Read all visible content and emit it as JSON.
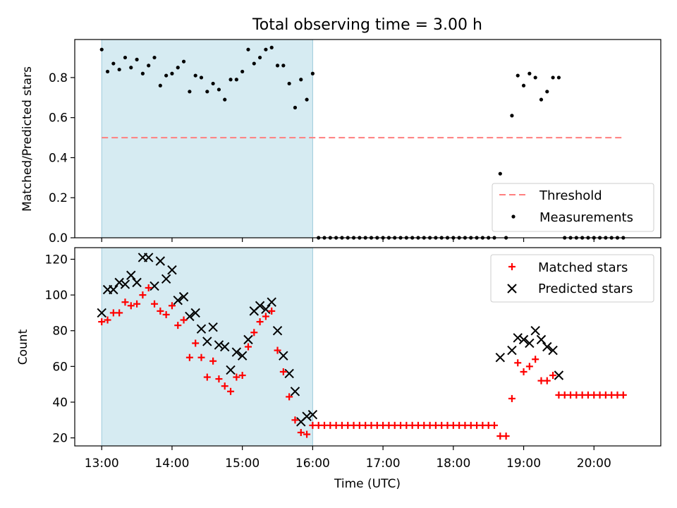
{
  "title": "Total observing time = 3.00 h",
  "chart_data": [
    {
      "type": "scatter",
      "ylabel": "Matched/Predicted stars",
      "xlim": [
        "12:37",
        "20:57"
      ],
      "ylim": [
        0,
        0.99
      ],
      "yticks": [
        0.0,
        0.2,
        0.4,
        0.6,
        0.8
      ],
      "ytick_labels": [
        "0.0",
        "0.2",
        "0.4",
        "0.6",
        "0.8"
      ],
      "shaded_range": [
        "13:00",
        "16:00"
      ],
      "legend": {
        "position": "lower-right",
        "entries": [
          "Threshold",
          "Measurements"
        ]
      },
      "threshold": {
        "name": "Threshold",
        "y": 0.5,
        "x": [
          "13:00",
          "20:25"
        ],
        "color": "#ff7f7f"
      },
      "series": [
        {
          "name": "Measurements",
          "color": "#000000",
          "points": [
            [
              "13:00",
              0.94
            ],
            [
              "13:05",
              0.83
            ],
            [
              "13:10",
              0.87
            ],
            [
              "13:15",
              0.84
            ],
            [
              "13:20",
              0.9
            ],
            [
              "13:25",
              0.85
            ],
            [
              "13:30",
              0.89
            ],
            [
              "13:35",
              0.82
            ],
            [
              "13:40",
              0.86
            ],
            [
              "13:45",
              0.9
            ],
            [
              "13:50",
              0.76
            ],
            [
              "13:55",
              0.81
            ],
            [
              "14:00",
              0.82
            ],
            [
              "14:05",
              0.85
            ],
            [
              "14:10",
              0.88
            ],
            [
              "14:15",
              0.73
            ],
            [
              "14:20",
              0.81
            ],
            [
              "14:25",
              0.8
            ],
            [
              "14:30",
              0.73
            ],
            [
              "14:35",
              0.77
            ],
            [
              "14:40",
              0.74
            ],
            [
              "14:45",
              0.69
            ],
            [
              "14:50",
              0.79
            ],
            [
              "14:55",
              0.79
            ],
            [
              "15:00",
              0.83
            ],
            [
              "15:05",
              0.94
            ],
            [
              "15:10",
              0.87
            ],
            [
              "15:15",
              0.9
            ],
            [
              "15:20",
              0.94
            ],
            [
              "15:25",
              0.95
            ],
            [
              "15:30",
              0.86
            ],
            [
              "15:35",
              0.86
            ],
            [
              "15:40",
              0.77
            ],
            [
              "15:45",
              0.65
            ],
            [
              "15:50",
              0.79
            ],
            [
              "15:55",
              0.69
            ],
            [
              "16:00",
              0.82
            ],
            [
              "16:05",
              0
            ],
            [
              "16:10",
              0
            ],
            [
              "16:15",
              0
            ],
            [
              "16:20",
              0
            ],
            [
              "16:25",
              0
            ],
            [
              "16:30",
              0
            ],
            [
              "16:35",
              0
            ],
            [
              "16:40",
              0
            ],
            [
              "16:45",
              0
            ],
            [
              "16:50",
              0
            ],
            [
              "16:55",
              0
            ],
            [
              "17:00",
              0
            ],
            [
              "17:05",
              0
            ],
            [
              "17:10",
              0
            ],
            [
              "17:15",
              0
            ],
            [
              "17:20",
              0
            ],
            [
              "17:25",
              0
            ],
            [
              "17:30",
              0
            ],
            [
              "17:35",
              0
            ],
            [
              "17:40",
              0
            ],
            [
              "17:45",
              0
            ],
            [
              "17:50",
              0
            ],
            [
              "17:55",
              0
            ],
            [
              "18:00",
              0
            ],
            [
              "18:05",
              0
            ],
            [
              "18:10",
              0
            ],
            [
              "18:15",
              0
            ],
            [
              "18:20",
              0
            ],
            [
              "18:25",
              0
            ],
            [
              "18:30",
              0
            ],
            [
              "18:35",
              0
            ],
            [
              "18:40",
              0.32
            ],
            [
              "18:45",
              0
            ],
            [
              "18:50",
              0.61
            ],
            [
              "18:55",
              0.81
            ],
            [
              "19:00",
              0.76
            ],
            [
              "19:05",
              0.82
            ],
            [
              "19:10",
              0.8
            ],
            [
              "19:15",
              0.69
            ],
            [
              "19:20",
              0.73
            ],
            [
              "19:25",
              0.8
            ],
            [
              "19:30",
              0.8
            ],
            [
              "19:35",
              0
            ],
            [
              "19:40",
              0
            ],
            [
              "19:45",
              0
            ],
            [
              "19:50",
              0
            ],
            [
              "19:55",
              0
            ],
            [
              "20:00",
              0
            ],
            [
              "20:05",
              0
            ],
            [
              "20:10",
              0
            ],
            [
              "20:15",
              0
            ],
            [
              "20:20",
              0
            ],
            [
              "20:25",
              0
            ]
          ]
        }
      ]
    },
    {
      "type": "scatter",
      "xlabel": "Time (UTC)",
      "ylabel": "Count",
      "xlim": [
        "12:37",
        "20:57"
      ],
      "ylim": [
        15.5,
        126.5
      ],
      "yticks": [
        20,
        40,
        60,
        80,
        100,
        120
      ],
      "ytick_labels": [
        "20",
        "40",
        "60",
        "80",
        "100",
        "120"
      ],
      "xticks": [
        "13:00",
        "14:00",
        "15:00",
        "16:00",
        "17:00",
        "18:00",
        "19:00",
        "20:00"
      ],
      "xtick_labels": [
        "13:00",
        "14:00",
        "15:00",
        "16:00",
        "17:00",
        "18:00",
        "19:00",
        "20:00"
      ],
      "shaded_range": [
        "13:00",
        "16:00"
      ],
      "legend": {
        "position": "top-right",
        "entries": [
          "Matched stars",
          "Predicted stars"
        ]
      },
      "series": [
        {
          "name": "Matched stars",
          "marker": "plus",
          "color": "#ff0000",
          "points": [
            [
              "13:00",
              85
            ],
            [
              "13:05",
              86
            ],
            [
              "13:10",
              90
            ],
            [
              "13:15",
              90
            ],
            [
              "13:20",
              96
            ],
            [
              "13:25",
              94
            ],
            [
              "13:30",
              95
            ],
            [
              "13:35",
              100
            ],
            [
              "13:40",
              104
            ],
            [
              "13:45",
              95
            ],
            [
              "13:50",
              91
            ],
            [
              "13:55",
              89
            ],
            [
              "14:00",
              94
            ],
            [
              "14:05",
              83
            ],
            [
              "14:10",
              86
            ],
            [
              "14:15",
              65
            ],
            [
              "14:20",
              73
            ],
            [
              "14:25",
              65
            ],
            [
              "14:30",
              54
            ],
            [
              "14:35",
              63
            ],
            [
              "14:40",
              53
            ],
            [
              "14:45",
              49
            ],
            [
              "14:50",
              46
            ],
            [
              "14:55",
              54
            ],
            [
              "15:00",
              55
            ],
            [
              "15:05",
              71
            ],
            [
              "15:10",
              79
            ],
            [
              "15:15",
              85
            ],
            [
              "15:20",
              88
            ],
            [
              "15:25",
              91
            ],
            [
              "15:30",
              69
            ],
            [
              "15:35",
              57
            ],
            [
              "15:40",
              43
            ],
            [
              "15:45",
              30
            ],
            [
              "15:50",
              23
            ],
            [
              "15:55",
              22
            ],
            [
              "16:00",
              27
            ],
            [
              "16:05",
              27
            ],
            [
              "16:10",
              27
            ],
            [
              "16:15",
              27
            ],
            [
              "16:20",
              27
            ],
            [
              "16:25",
              27
            ],
            [
              "16:30",
              27
            ],
            [
              "16:35",
              27
            ],
            [
              "16:40",
              27
            ],
            [
              "16:45",
              27
            ],
            [
              "16:50",
              27
            ],
            [
              "16:55",
              27
            ],
            [
              "17:00",
              27
            ],
            [
              "17:05",
              27
            ],
            [
              "17:10",
              27
            ],
            [
              "17:15",
              27
            ],
            [
              "17:20",
              27
            ],
            [
              "17:25",
              27
            ],
            [
              "17:30",
              27
            ],
            [
              "17:35",
              27
            ],
            [
              "17:40",
              27
            ],
            [
              "17:45",
              27
            ],
            [
              "17:50",
              27
            ],
            [
              "17:55",
              27
            ],
            [
              "18:00",
              27
            ],
            [
              "18:05",
              27
            ],
            [
              "18:10",
              27
            ],
            [
              "18:15",
              27
            ],
            [
              "18:20",
              27
            ],
            [
              "18:25",
              27
            ],
            [
              "18:30",
              27
            ],
            [
              "18:35",
              27
            ],
            [
              "18:40",
              21
            ],
            [
              "18:45",
              21
            ],
            [
              "18:50",
              42
            ],
            [
              "18:55",
              62
            ],
            [
              "19:00",
              57
            ],
            [
              "19:05",
              60
            ],
            [
              "19:10",
              64
            ],
            [
              "19:15",
              52
            ],
            [
              "19:20",
              52
            ],
            [
              "19:25",
              55
            ],
            [
              "19:30",
              44
            ],
            [
              "19:35",
              44
            ],
            [
              "19:40",
              44
            ],
            [
              "19:45",
              44
            ],
            [
              "19:50",
              44
            ],
            [
              "19:55",
              44
            ],
            [
              "20:00",
              44
            ],
            [
              "20:05",
              44
            ],
            [
              "20:10",
              44
            ],
            [
              "20:15",
              44
            ],
            [
              "20:20",
              44
            ],
            [
              "20:25",
              44
            ]
          ]
        },
        {
          "name": "Predicted stars",
          "marker": "x",
          "color": "#000000",
          "points": [
            [
              "13:00",
              90
            ],
            [
              "13:05",
              103
            ],
            [
              "13:10",
              103
            ],
            [
              "13:15",
              107
            ],
            [
              "13:20",
              106
            ],
            [
              "13:25",
              111
            ],
            [
              "13:30",
              107
            ],
            [
              "13:35",
              121
            ],
            [
              "13:40",
              121
            ],
            [
              "13:45",
              105
            ],
            [
              "13:50",
              119
            ],
            [
              "13:55",
              109
            ],
            [
              "14:00",
              114
            ],
            [
              "14:05",
              97
            ],
            [
              "14:10",
              99
            ],
            [
              "14:15",
              88
            ],
            [
              "14:20",
              90
            ],
            [
              "14:25",
              81
            ],
            [
              "14:30",
              74
            ],
            [
              "14:35",
              82
            ],
            [
              "14:40",
              72
            ],
            [
              "14:45",
              71
            ],
            [
              "14:50",
              58
            ],
            [
              "14:55",
              68
            ],
            [
              "15:00",
              66
            ],
            [
              "15:05",
              75
            ],
            [
              "15:10",
              91
            ],
            [
              "15:15",
              94
            ],
            [
              "15:20",
              92
            ],
            [
              "15:25",
              96
            ],
            [
              "15:30",
              80
            ],
            [
              "15:35",
              66
            ],
            [
              "15:40",
              56
            ],
            [
              "15:45",
              46
            ],
            [
              "15:50",
              29
            ],
            [
              "15:55",
              32
            ],
            [
              "16:00",
              33
            ],
            [
              "18:40",
              65
            ],
            [
              "18:50",
              69
            ],
            [
              "18:55",
              76
            ],
            [
              "19:00",
              75
            ],
            [
              "19:05",
              73
            ],
            [
              "19:10",
              80
            ],
            [
              "19:15",
              75
            ],
            [
              "19:20",
              71
            ],
            [
              "19:25",
              69
            ],
            [
              "19:30",
              55
            ]
          ]
        }
      ]
    }
  ]
}
